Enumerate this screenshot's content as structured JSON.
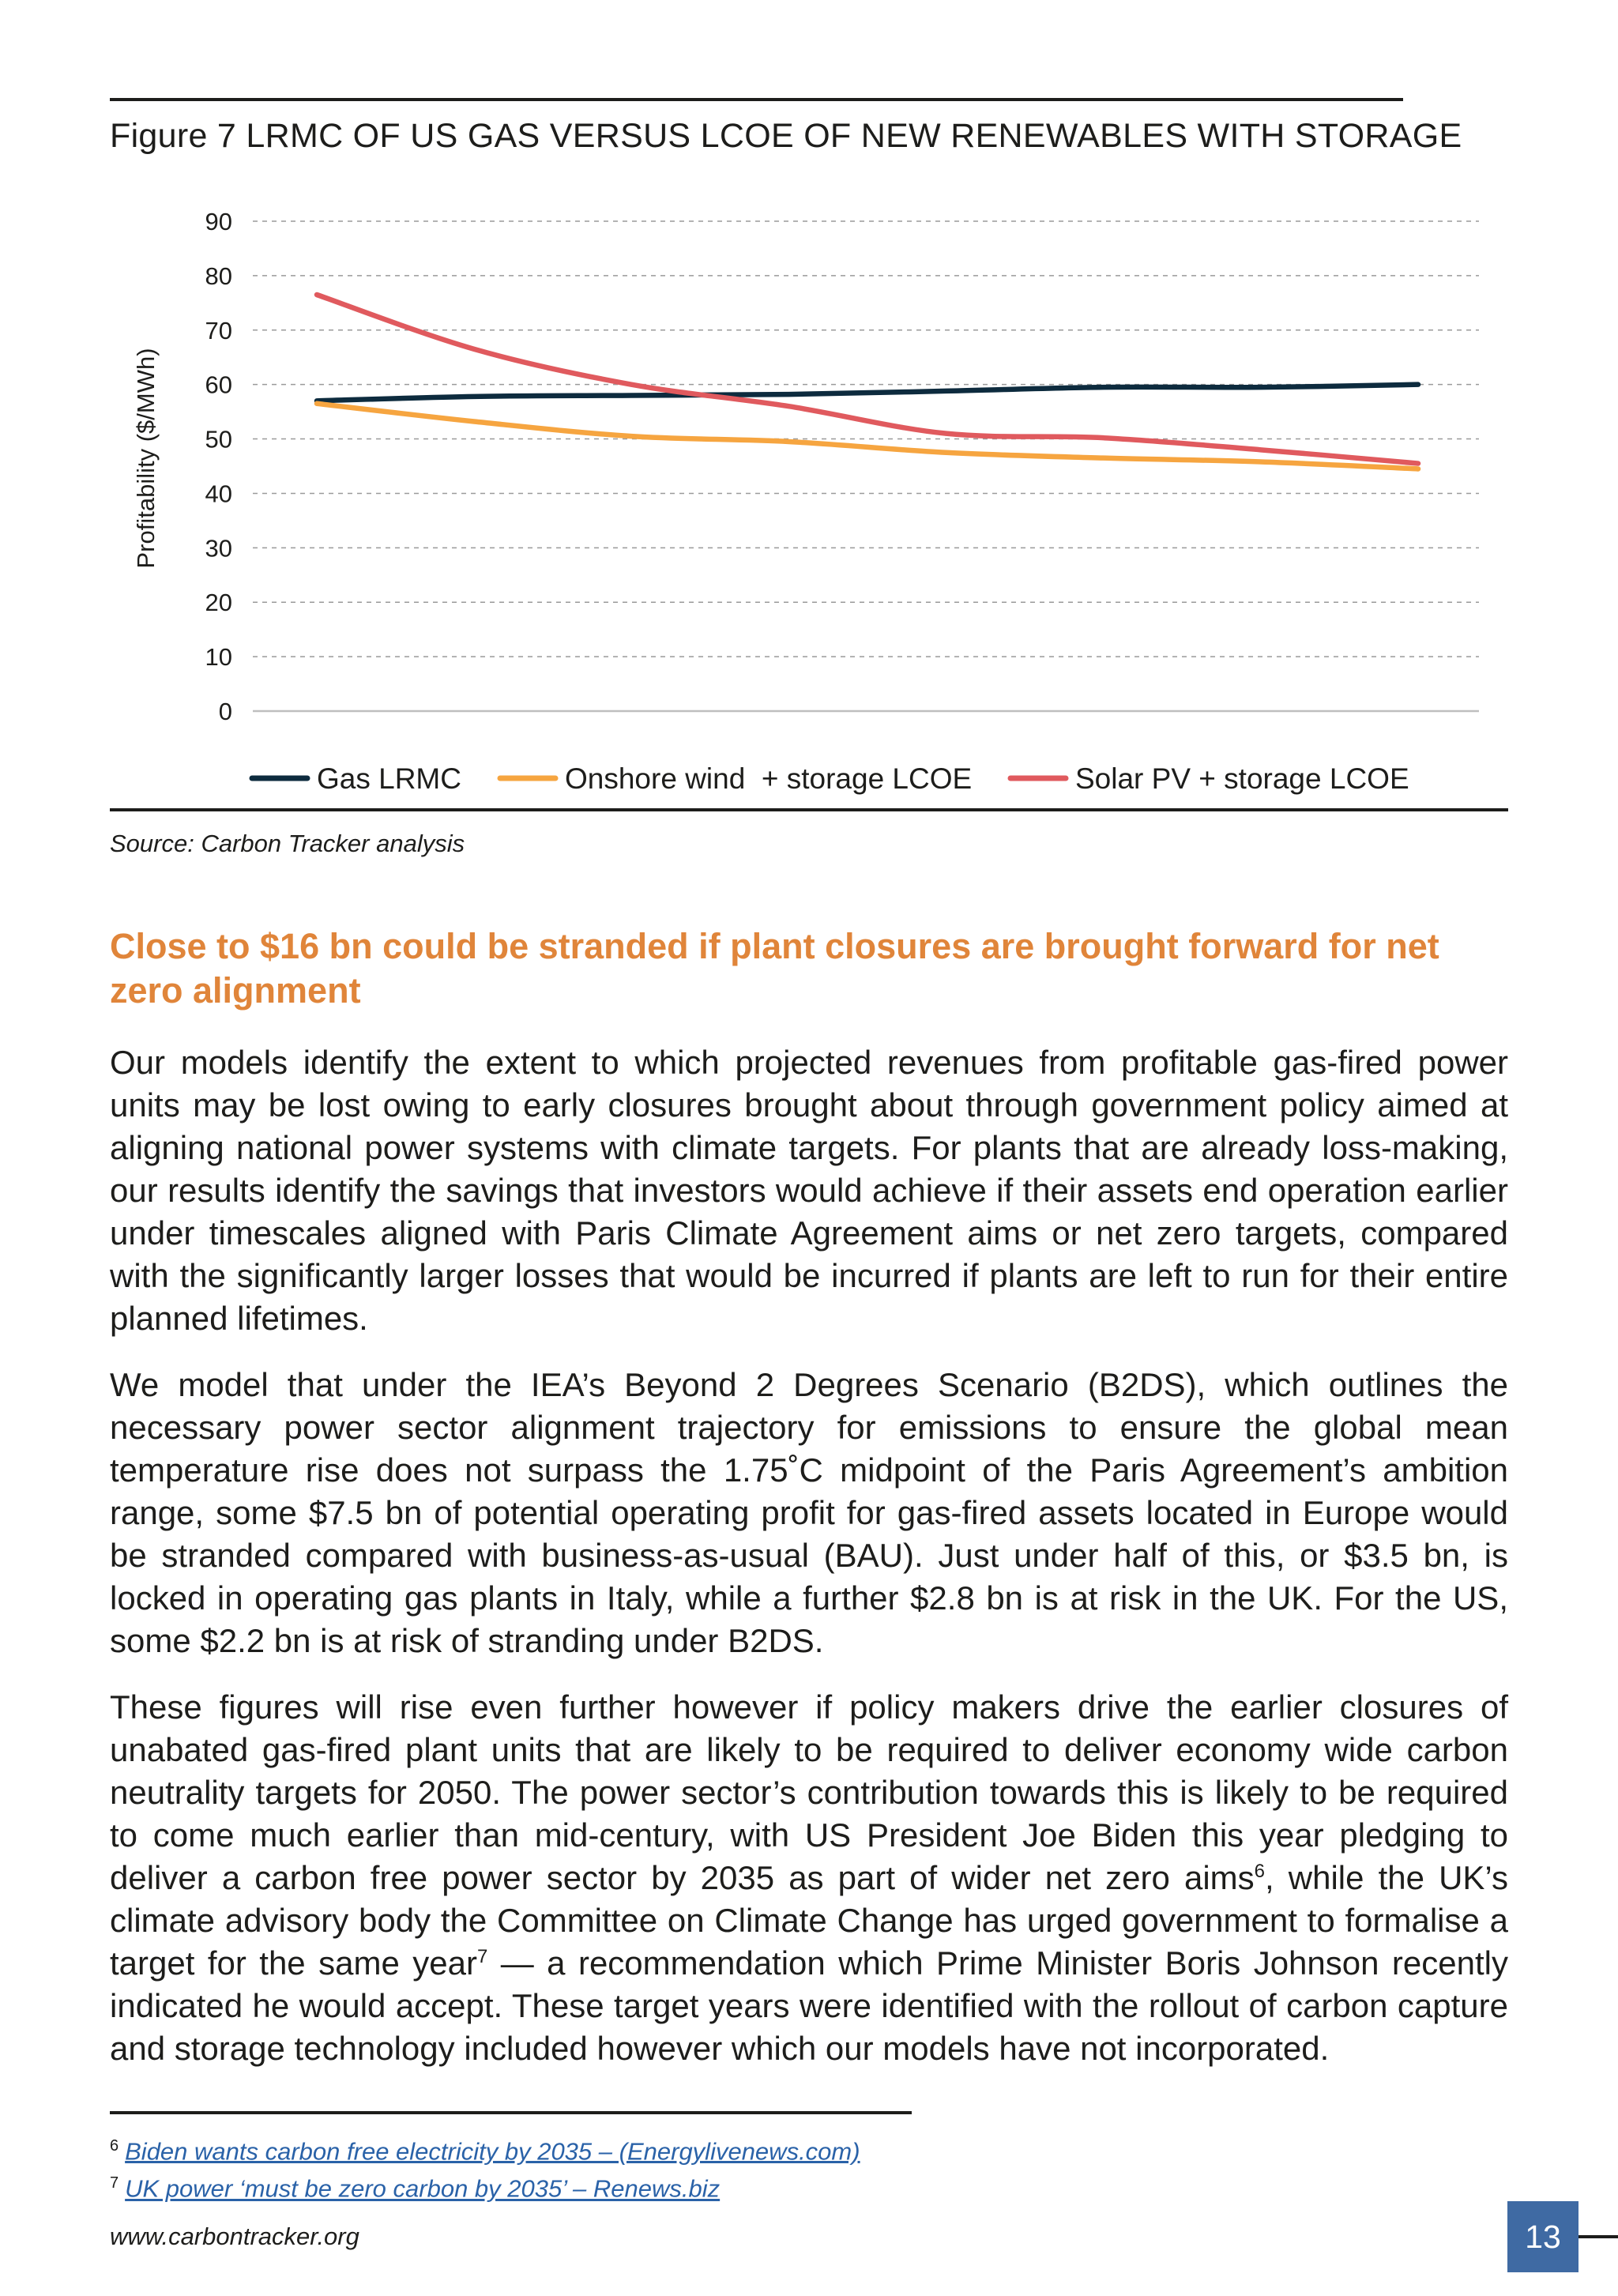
{
  "figure": {
    "title": "Figure 7 LRMC OF US GAS VERSUS LCOE OF NEW RENEWABLES WITH STORAGE",
    "source": "Source: Carbon Tracker analysis"
  },
  "chart_data": {
    "type": "line",
    "title": "",
    "ylabel": "Profitability ($/MWh)",
    "xlabel": "",
    "ylim": [
      0,
      90
    ],
    "yticks": [
      0,
      10,
      20,
      30,
      40,
      50,
      60,
      70,
      80,
      90
    ],
    "grid": true,
    "legend_position": "bottom",
    "x": [
      0,
      1,
      2,
      3,
      4,
      5,
      6,
      7
    ],
    "series": [
      {
        "name": "Gas LRMC",
        "color": "#0d2b3e",
        "values": [
          57,
          57.8,
          58,
          58.2,
          58.8,
          59.5,
          59.5,
          60
        ]
      },
      {
        "name": "Onshore wind  + storage LCOE",
        "color": "#f6a540",
        "values": [
          56.5,
          53.2,
          50.5,
          49.5,
          47.5,
          46.5,
          45.8,
          44.5
        ]
      },
      {
        "name": "Solar PV + storage LCOE",
        "color": "#e05a5e",
        "values": [
          76.5,
          66.5,
          60,
          56,
          51,
          50.2,
          48,
          45.5
        ]
      }
    ]
  },
  "section": {
    "heading": "Close to $16 bn could be stranded if plant closures are brought forward for net zero alignment",
    "p1": "Our models identify the extent to which projected revenues from profitable gas-fired power units may be lost owing to early closures brought about through government policy aimed at aligning national power systems with climate targets. For plants that are already loss-making, our results identify the savings that investors would achieve if their assets end operation earlier under timescales aligned with Paris Climate Agreement aims or net zero targets, compared with the significantly larger losses that would be incurred if plants are left to run for their entire planned lifetimes.",
    "p2": "We model that under the IEA’s Beyond 2 Degrees Scenario (B2DS), which outlines the necessary power sector alignment trajectory for emissions to ensure the global mean temperature rise does not surpass the 1.75˚C midpoint of the Paris Agreement’s ambition range, some $7.5 bn of potential operating profit for gas-fired assets located in Europe would be stranded compared with business-as-usual (BAU). Just under half of this, or $3.5 bn, is locked in operating gas plants in Italy, while a further $2.8 bn is at risk in the UK. For the US, some $2.2 bn is at risk of stranding under B2DS.",
    "p3_a": "These figures will rise even further however if policy makers drive the earlier closures of unabated gas-fired plant units that are likely to be required to deliver economy wide carbon neutrality targets for 2050. The power sector’s contribution towards this is likely to be required to come much earlier than mid-century, with US President Joe Biden this year pledging to deliver a carbon free power sector by 2035 as part of wider net zero aims",
    "p3_sup1": "6",
    "p3_b": ", while the UK’s climate advisory body the Committee on Climate Change has urged government to formalise a target for the same year",
    "p3_sup2": "7",
    "p3_c": " — a recommendation which Prime Minister Boris Johnson recently indicated he would accept. These target years were identified with the rollout of carbon capture and storage technology included however which our models have not incorporated."
  },
  "footnotes": [
    {
      "num": "6",
      "text": "Biden wants carbon free electricity by 2035 – (Energylivenews.com)"
    },
    {
      "num": "7",
      "text": "UK power ‘must be zero carbon by 2035’ – Renews.biz"
    }
  ],
  "footer": {
    "website": "www.carbontracker.org",
    "page_number": "13"
  }
}
